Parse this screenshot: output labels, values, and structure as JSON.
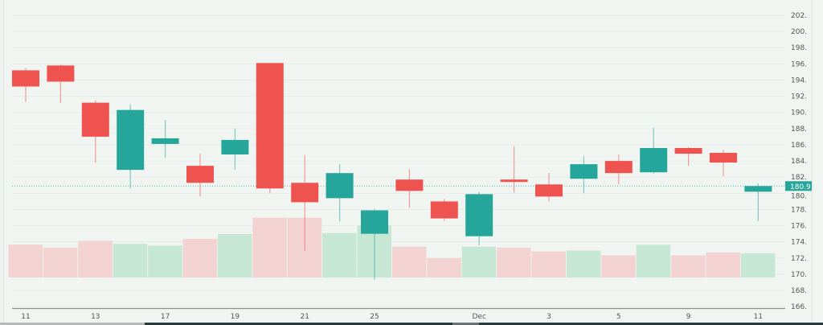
{
  "chart_data": {
    "type": "candlestick",
    "title": "",
    "xlabel": "",
    "ylabel": "",
    "ylim": [
      165,
      203
    ],
    "y_ticks": [
      202,
      200,
      198,
      196,
      194,
      192,
      190,
      188,
      186,
      184,
      182,
      180,
      178,
      176,
      174,
      172,
      170,
      168,
      166
    ],
    "y_tick_labels": [
      "202.0",
      "200.0",
      "198.0",
      "196.0",
      "194.0",
      "192.0",
      "190.0",
      "188.0",
      "186.0",
      "184.0",
      "182.0",
      "180.0",
      "178.0",
      "176.0",
      "174.0",
      "172.0",
      "170.0",
      "168.0",
      "166.0"
    ],
    "x_tick_labels": [
      {
        "label": "11",
        "index": 0
      },
      {
        "label": "13",
        "index": 2
      },
      {
        "label": "17",
        "index": 4
      },
      {
        "label": "19",
        "index": 6
      },
      {
        "label": "21",
        "index": 8
      },
      {
        "label": "25",
        "index": 10
      },
      {
        "label": "Dec",
        "index": 13
      },
      {
        "label": "3",
        "index": 15
      },
      {
        "label": "5",
        "index": 17
      },
      {
        "label": "9",
        "index": 19
      },
      {
        "label": "11",
        "index": 21
      }
    ],
    "last_price": 180.9,
    "last_price_label": "180.9",
    "up_color": "#26a69a",
    "down_color": "#ef5350",
    "up_volume_color": "#c6e7d3",
    "down_volume_color": "#f3d3d2",
    "candles": [
      {
        "open": 193.2,
        "close": 195.2,
        "high": 195.5,
        "low": 191.3,
        "dir": "down",
        "volume": 17.0
      },
      {
        "open": 193.8,
        "close": 195.8,
        "high": 195.9,
        "low": 191.2,
        "dir": "down",
        "volume": 15.5
      },
      {
        "open": 187.0,
        "close": 191.2,
        "high": 191.5,
        "low": 183.8,
        "dir": "down",
        "volume": 19.0
      },
      {
        "open": 182.9,
        "close": 190.3,
        "high": 191.0,
        "low": 180.6,
        "dir": "up",
        "volume": 17.5
      },
      {
        "open": 186.1,
        "close": 186.8,
        "high": 189.1,
        "low": 184.4,
        "dir": "up",
        "volume": 16.5
      },
      {
        "open": 181.3,
        "close": 183.4,
        "high": 184.9,
        "low": 179.6,
        "dir": "down",
        "volume": 20.0
      },
      {
        "open": 184.8,
        "close": 186.6,
        "high": 188.0,
        "low": 182.9,
        "dir": "up",
        "volume": 22.5
      },
      {
        "open": 180.6,
        "close": 196.1,
        "high": 196.1,
        "low": 180.0,
        "dir": "down",
        "volume": 31.0
      },
      {
        "open": 178.9,
        "close": 181.3,
        "high": 184.7,
        "low": 172.9,
        "dir": "down",
        "volume": 31.0
      },
      {
        "open": 179.4,
        "close": 182.5,
        "high": 183.6,
        "low": 176.5,
        "dir": "up",
        "volume": 23.0
      },
      {
        "open": 175.0,
        "close": 177.9,
        "high": 178.1,
        "low": 169.3,
        "dir": "up",
        "volume": 27.0
      },
      {
        "open": 180.3,
        "close": 181.7,
        "high": 183.0,
        "low": 178.2,
        "dir": "down",
        "volume": 16.0
      },
      {
        "open": 176.9,
        "close": 179.0,
        "high": 179.3,
        "low": 176.6,
        "dir": "down",
        "volume": 10.0
      },
      {
        "open": 174.7,
        "close": 179.9,
        "high": 180.2,
        "low": 173.6,
        "dir": "up",
        "volume": 16.0
      },
      {
        "open": 181.4,
        "close": 181.7,
        "high": 185.8,
        "low": 180.1,
        "dir": "down",
        "volume": 15.5
      },
      {
        "open": 179.6,
        "close": 181.1,
        "high": 182.5,
        "low": 179.0,
        "dir": "down",
        "volume": 13.5
      },
      {
        "open": 181.8,
        "close": 183.6,
        "high": 184.6,
        "low": 180.0,
        "dir": "up",
        "volume": 14.0
      },
      {
        "open": 182.5,
        "close": 184.0,
        "high": 184.8,
        "low": 181.1,
        "dir": "down",
        "volume": 11.5
      },
      {
        "open": 182.6,
        "close": 185.6,
        "high": 188.1,
        "low": 182.4,
        "dir": "up",
        "volume": 17.0
      },
      {
        "open": 184.9,
        "close": 185.6,
        "high": 185.7,
        "low": 183.4,
        "dir": "down",
        "volume": 11.5
      },
      {
        "open": 183.8,
        "close": 185.0,
        "high": 185.4,
        "low": 182.1,
        "dir": "down",
        "volume": 13.0
      },
      {
        "open": 180.2,
        "close": 180.9,
        "high": 181.2,
        "low": 176.6,
        "dir": "up",
        "volume": 12.5
      }
    ]
  }
}
